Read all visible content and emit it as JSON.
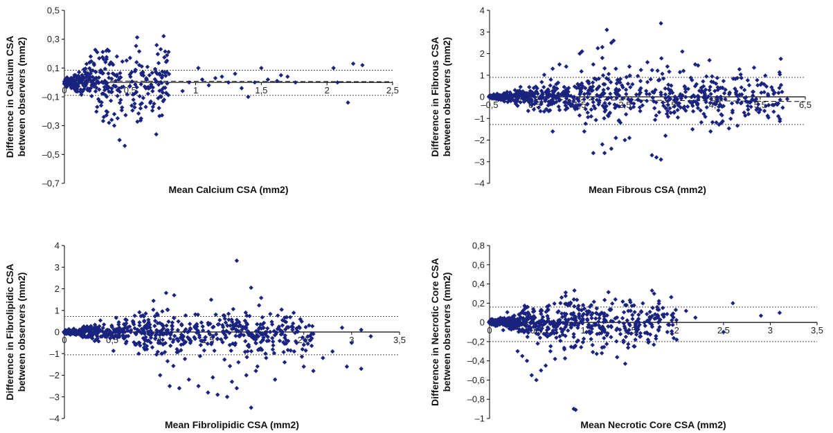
{
  "chart_data": [
    {
      "type": "scatter",
      "title": "",
      "xlabel": "Mean Calcium CSA (mm2)",
      "ylabel_lines": [
        "Difference in Calcium CSA",
        "between observers (mm2)"
      ],
      "xlim": [
        0,
        2.5
      ],
      "ylim": [
        -0.7,
        0.5
      ],
      "x_ticks": [
        0,
        0.5,
        1,
        1.5,
        2,
        2.5
      ],
      "x_tick_labels": [
        "0",
        "0,5",
        "1",
        "1,5",
        "2",
        "2,5"
      ],
      "y_ticks": [
        0.5,
        0.3,
        0.1,
        -0.1,
        -0.3,
        -0.5,
        -0.7
      ],
      "y_tick_labels": [
        "0,5",
        "0,3",
        "0,1",
        "–0,1",
        "–0,3",
        "–0,5",
        "–0,7"
      ],
      "upper_limit": 0.085,
      "lower_limit": -0.09,
      "mean_line": {
        "x": [
          0,
          2.5
        ],
        "y": [
          0.01,
          0.005
        ]
      },
      "marker_color": "#1a237e",
      "cluster": {
        "x_max": 0.8,
        "y_spread": 0.12,
        "count": 380
      },
      "points": [
        [
          0.5,
          0.17
        ],
        [
          0.4,
          0.18
        ],
        [
          0.55,
          0.14
        ],
        [
          0.2,
          0.18
        ],
        [
          0.3,
          0.16
        ],
        [
          0.42,
          -0.4
        ],
        [
          0.46,
          -0.44
        ],
        [
          0.32,
          -0.2
        ],
        [
          0.36,
          -0.26
        ],
        [
          0.38,
          -0.3
        ],
        [
          0.7,
          -0.36
        ],
        [
          0.58,
          -0.18
        ],
        [
          0.62,
          -0.17
        ],
        [
          0.3,
          -0.24
        ],
        [
          0.25,
          -0.17
        ],
        [
          0.34,
          -0.28
        ],
        [
          0.28,
          -0.16
        ],
        [
          0.38,
          -0.22
        ],
        [
          0.9,
          -0.06
        ],
        [
          1.02,
          0.1
        ],
        [
          0.95,
          0.0
        ],
        [
          1.05,
          0.02
        ],
        [
          1.1,
          -0.02
        ],
        [
          1.2,
          0.04
        ],
        [
          1.25,
          0.0
        ],
        [
          1.3,
          0.06
        ],
        [
          1.35,
          -0.04
        ],
        [
          1.4,
          -0.1
        ],
        [
          1.45,
          0.0
        ],
        [
          1.55,
          0.02
        ],
        [
          1.62,
          0.01
        ],
        [
          1.65,
          0.05
        ],
        [
          1.7,
          0.04
        ],
        [
          1.76,
          0.0
        ],
        [
          1.5,
          0.1
        ],
        [
          1.15,
          0.03
        ],
        [
          2.2,
          0.13
        ],
        [
          2.27,
          0.12
        ],
        [
          2.05,
          0.1
        ],
        [
          2.16,
          -0.14
        ],
        [
          2.08,
          0.0
        ]
      ]
    },
    {
      "type": "scatter",
      "title": "",
      "xlabel": "Mean Fibrous CSA (mm2)",
      "ylabel_lines": [
        "Difference in Fibrous CSA",
        "between observers (mm2)"
      ],
      "xlim": [
        -0.5,
        6.5
      ],
      "ylim": [
        -4,
        4
      ],
      "x_ticks": [
        -0.5,
        0.5,
        1.5,
        2.5,
        3.5,
        4.5,
        5.5,
        6.5
      ],
      "x_tick_labels": [
        "–0,5",
        "0,5",
        "1,5",
        "2,5",
        "3,5",
        "4,5",
        "5,5",
        "6,5"
      ],
      "y_ticks": [
        4,
        3,
        2,
        1,
        0,
        -1,
        -2,
        -3,
        -4
      ],
      "y_tick_labels": [
        "4",
        "3",
        "2",
        "1",
        "0",
        "–1",
        "–2",
        "–3",
        "–4"
      ],
      "upper_limit": 0.9,
      "lower_limit": -1.28,
      "mean_line": {
        "x": [
          -0.5,
          6.5
        ],
        "y": [
          -0.1,
          -0.22
        ]
      },
      "marker_color": "#1a237e",
      "cluster": {
        "x_max": 6.0,
        "y_spread": 0.6,
        "count": 750
      },
      "points": [
        [
          3.3,
          3.4
        ],
        [
          2.1,
          3.1
        ],
        [
          2.0,
          2.3
        ],
        [
          2.2,
          2.5
        ],
        [
          1.9,
          2.25
        ],
        [
          2.25,
          2.6
        ],
        [
          1.5,
          2.0
        ],
        [
          1.55,
          2.1
        ],
        [
          1.2,
          1.4
        ],
        [
          0.9,
          1.3
        ],
        [
          2.6,
          1.4
        ],
        [
          3.0,
          1.6
        ],
        [
          2.3,
          1.3
        ],
        [
          3.8,
          1.2
        ],
        [
          2.0,
          1.8
        ],
        [
          1.8,
          1.5
        ],
        [
          1.05,
          1.5
        ],
        [
          2.0,
          -2.2
        ],
        [
          2.05,
          -2.6
        ],
        [
          2.2,
          -2.4
        ],
        [
          1.8,
          -2.6
        ],
        [
          3.2,
          -2.8
        ],
        [
          3.3,
          -2.9
        ],
        [
          3.1,
          -2.7
        ],
        [
          2.5,
          -2.0
        ],
        [
          3.4,
          -1.8
        ],
        [
          4.4,
          -1.6
        ],
        [
          2.6,
          -1.9
        ],
        [
          1.6,
          -1.6
        ],
        [
          0.9,
          -1.6
        ],
        [
          4.0,
          -1.5
        ],
        [
          2.3,
          -1.9
        ],
        [
          5.5,
          -0.6
        ],
        [
          5.9,
          -0.3
        ],
        [
          6.1,
          -0.1
        ],
        [
          6.0,
          -0.5
        ],
        [
          5.3,
          -0.2
        ]
      ]
    },
    {
      "type": "scatter",
      "title": "",
      "xlabel": "Mean Fibrolipidic CSA (mm2)",
      "ylabel_lines": [
        "Difference in Fibrolipidic CSA",
        "between observers (mm2)"
      ],
      "xlim": [
        0,
        3.5
      ],
      "ylim": [
        -4,
        4
      ],
      "x_ticks": [
        0,
        0.5,
        1,
        1.5,
        2,
        2.5,
        3,
        3.5
      ],
      "x_tick_labels": [
        "0",
        "0,5",
        "1",
        "1,5",
        "2",
        "2,5",
        "3",
        "3,5"
      ],
      "y_ticks": [
        4,
        3,
        2,
        1,
        0,
        -1,
        -2,
        -3,
        -4
      ],
      "y_tick_labels": [
        "4",
        "3",
        "2",
        "1",
        "0",
        "–1",
        "–2",
        "–3",
        "–4"
      ],
      "upper_limit": 0.72,
      "lower_limit": -1.05,
      "mean_line": null,
      "marker_color": "#1a237e",
      "cluster": {
        "x_max": 2.6,
        "y_spread": 0.55,
        "count": 700
      },
      "points": [
        [
          1.8,
          3.3
        ],
        [
          1.95,
          2.05
        ],
        [
          1.0,
          -2.0
        ],
        [
          1.1,
          -2.5
        ],
        [
          1.2,
          -2.6
        ],
        [
          1.3,
          -2.2
        ],
        [
          1.4,
          -2.5
        ],
        [
          1.5,
          -2.8
        ],
        [
          1.6,
          -2.9
        ],
        [
          1.7,
          -3.0
        ],
        [
          1.9,
          -2.0
        ],
        [
          2.0,
          -1.8
        ],
        [
          1.95,
          -3.5
        ],
        [
          2.5,
          -1.6
        ],
        [
          2.3,
          -1.4
        ],
        [
          2.7,
          -1.2
        ],
        [
          2.95,
          -1.6
        ],
        [
          3.1,
          -1.7
        ],
        [
          2.6,
          -1.8
        ],
        [
          2.2,
          -2.2
        ],
        [
          1.8,
          -2.6
        ],
        [
          1.55,
          -2.1
        ],
        [
          2.8,
          -0.9
        ],
        [
          3.0,
          -0.5
        ],
        [
          3.2,
          -0.2
        ],
        [
          2.9,
          0.2
        ],
        [
          3.1,
          0.1
        ],
        [
          2.1,
          -1.0
        ],
        [
          2.4,
          -0.9
        ],
        [
          1.75,
          -2.3
        ]
      ]
    },
    {
      "type": "scatter",
      "title": "",
      "xlabel": "Mean Necrotic Core CSA (mm2)",
      "ylabel_lines": [
        "Difference in Necrotic Core CSA",
        "between observers (mm2)"
      ],
      "xlim": [
        0,
        3.5
      ],
      "ylim": [
        -1,
        0.8
      ],
      "x_ticks": [
        0,
        0.5,
        1,
        1.5,
        2,
        2.5,
        3,
        3.5
      ],
      "x_tick_labels": [
        "0",
        "0,5",
        "1",
        "1,5",
        "2",
        "2,5",
        "3",
        "3,5"
      ],
      "y_ticks": [
        0.8,
        0.6,
        0.4,
        0.2,
        0,
        -0.2,
        -0.4,
        -0.6,
        -0.8,
        -1
      ],
      "y_tick_labels": [
        "0,8",
        "0,6",
        "0,4",
        "0,2",
        "0",
        "–0,2",
        "–0,4",
        "–0,6",
        "–0,8",
        "–1"
      ],
      "upper_limit": 0.16,
      "lower_limit": -0.2,
      "mean_line": null,
      "marker_color": "#1a237e",
      "cluster": {
        "x_max": 2.0,
        "y_spread": 0.14,
        "count": 650
      },
      "points": [
        [
          0.45,
          -0.55
        ],
        [
          0.5,
          -0.6
        ],
        [
          0.6,
          -0.45
        ],
        [
          0.55,
          -0.5
        ],
        [
          0.4,
          -0.4
        ],
        [
          0.7,
          -0.38
        ],
        [
          0.65,
          -0.3
        ],
        [
          0.35,
          -0.35
        ],
        [
          0.3,
          -0.3
        ],
        [
          0.8,
          -0.28
        ],
        [
          0.9,
          -0.9
        ],
        [
          0.92,
          -0.91
        ],
        [
          1.5,
          0.23
        ],
        [
          1.45,
          0.18
        ],
        [
          1.55,
          -0.25
        ],
        [
          1.45,
          -0.43
        ],
        [
          1.2,
          -0.32
        ],
        [
          1.7,
          -0.2
        ],
        [
          1.8,
          0.05
        ],
        [
          2.0,
          -0.18
        ],
        [
          2.2,
          0.05
        ],
        [
          2.5,
          -0.1
        ],
        [
          2.6,
          0.2
        ],
        [
          2.9,
          0.07
        ],
        [
          3.1,
          0.1
        ],
        [
          2.1,
          0.12
        ],
        [
          1.9,
          -0.1
        ],
        [
          1.0,
          0.18
        ],
        [
          1.2,
          0.1
        ]
      ]
    }
  ]
}
